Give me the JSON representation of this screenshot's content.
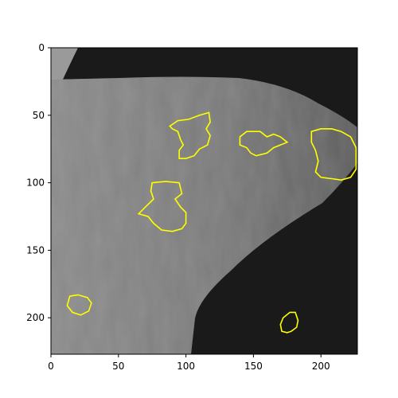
{
  "colors": {
    "contour": "#ffff00",
    "background_dark": "#1a1a1a",
    "tissue_light": "#9a9a9a",
    "tissue_mid": "#6f6f6f",
    "axis": "#000000"
  },
  "axes": {
    "image_size": [
      227,
      227
    ],
    "x_ticks": [
      0,
      50,
      100,
      150,
      200
    ],
    "y_ticks": [
      0,
      50,
      100,
      150,
      200
    ],
    "x_tick_labels": [
      "0",
      "50",
      "100",
      "150",
      "200"
    ],
    "y_tick_labels": [
      "0",
      "50",
      "100",
      "150",
      "200"
    ]
  },
  "regions": [
    {
      "id": "region-1",
      "points": [
        [
          88,
          58
        ],
        [
          94,
          54
        ],
        [
          102,
          53
        ],
        [
          110,
          50
        ],
        [
          117,
          48
        ],
        [
          118,
          55
        ],
        [
          115,
          60
        ],
        [
          118,
          65
        ],
        [
          116,
          72
        ],
        [
          110,
          75
        ],
        [
          106,
          80
        ],
        [
          100,
          82
        ],
        [
          95,
          82
        ],
        [
          95,
          76
        ],
        [
          98,
          72
        ],
        [
          96,
          68
        ],
        [
          94,
          62
        ],
        [
          90,
          60
        ]
      ]
    },
    {
      "id": "region-2",
      "points": [
        [
          140,
          66
        ],
        [
          145,
          62
        ],
        [
          155,
          62
        ],
        [
          160,
          66
        ],
        [
          165,
          64
        ],
        [
          170,
          66
        ],
        [
          175,
          70
        ],
        [
          170,
          72
        ],
        [
          165,
          74
        ],
        [
          160,
          78
        ],
        [
          152,
          80
        ],
        [
          148,
          78
        ],
        [
          145,
          74
        ],
        [
          140,
          72
        ]
      ]
    },
    {
      "id": "region-3",
      "points": [
        [
          193,
          62
        ],
        [
          200,
          60
        ],
        [
          208,
          60
        ],
        [
          215,
          62
        ],
        [
          222,
          66
        ],
        [
          226,
          74
        ],
        [
          226,
          90
        ],
        [
          222,
          96
        ],
        [
          215,
          98
        ],
        [
          208,
          97
        ],
        [
          200,
          96
        ],
        [
          196,
          92
        ],
        [
          198,
          84
        ],
        [
          196,
          76
        ],
        [
          193,
          70
        ]
      ]
    },
    {
      "id": "region-4",
      "points": [
        [
          75,
          100
        ],
        [
          85,
          99
        ],
        [
          95,
          100
        ],
        [
          97,
          108
        ],
        [
          92,
          112
        ],
        [
          96,
          118
        ],
        [
          100,
          122
        ],
        [
          100,
          130
        ],
        [
          97,
          134
        ],
        [
          90,
          136
        ],
        [
          82,
          135
        ],
        [
          76,
          130
        ],
        [
          72,
          125
        ],
        [
          65,
          123
        ],
        [
          70,
          118
        ],
        [
          76,
          112
        ],
        [
          74,
          106
        ]
      ]
    },
    {
      "id": "region-5",
      "points": [
        [
          14,
          184
        ],
        [
          20,
          183
        ],
        [
          27,
          185
        ],
        [
          30,
          189
        ],
        [
          28,
          195
        ],
        [
          22,
          198
        ],
        [
          16,
          196
        ],
        [
          12,
          191
        ]
      ]
    },
    {
      "id": "region-6",
      "points": [
        [
          177,
          196
        ],
        [
          181,
          196
        ],
        [
          183,
          202
        ],
        [
          182,
          207
        ],
        [
          178,
          210
        ],
        [
          175,
          211
        ],
        [
          171,
          210
        ],
        [
          170,
          205
        ],
        [
          172,
          200
        ]
      ]
    }
  ]
}
